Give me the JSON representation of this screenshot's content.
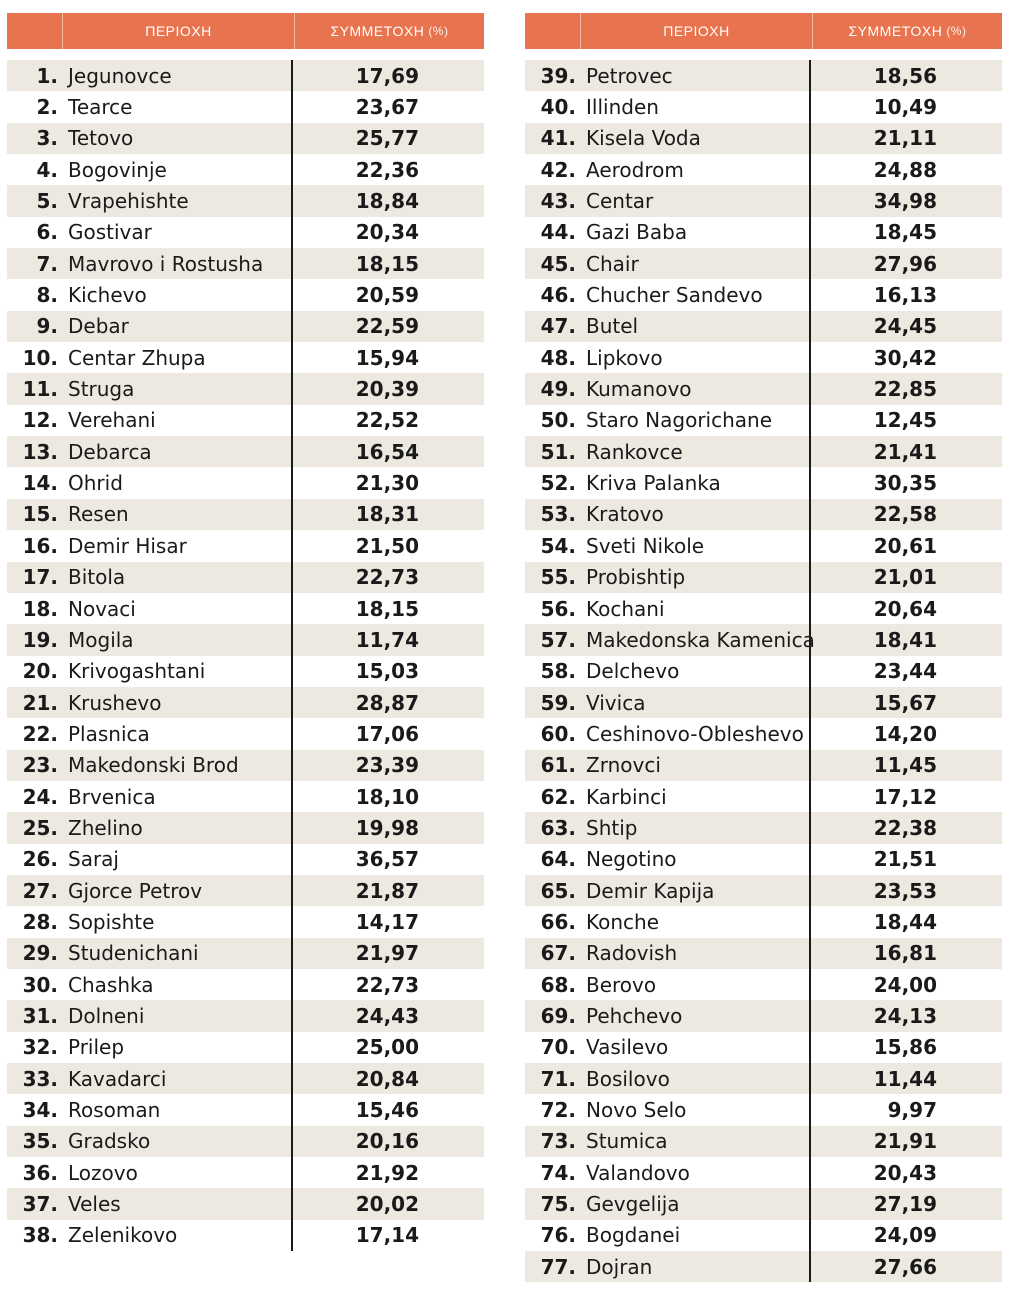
{
  "header": {
    "region": "ΠΕΡΙΟΧΗ",
    "participation": "ΣΥΜΜΕΤΟΧΗ",
    "participation_unit": "(%)"
  },
  "left_rows": [
    {
      "num": "1.",
      "name": "Jegunovce",
      "value": "17,69"
    },
    {
      "num": "2.",
      "name": "Tearce",
      "value": "23,67"
    },
    {
      "num": "3.",
      "name": "Tetovo",
      "value": "25,77"
    },
    {
      "num": "4.",
      "name": "Bogovinje",
      "value": "22,36"
    },
    {
      "num": "5.",
      "name": "Vrapehishte",
      "value": "18,84"
    },
    {
      "num": "6.",
      "name": "Gostivar",
      "value": "20,34"
    },
    {
      "num": "7.",
      "name": "Mavrovo i Rostusha",
      "value": "18,15"
    },
    {
      "num": "8.",
      "name": "Kichevo",
      "value": "20,59"
    },
    {
      "num": "9.",
      "name": "Debar",
      "value": "22,59"
    },
    {
      "num": "10.",
      "name": "Centar Zhupa",
      "value": "15,94"
    },
    {
      "num": "11.",
      "name": "Struga",
      "value": "20,39"
    },
    {
      "num": "12.",
      "name": "Verehani",
      "value": "22,52"
    },
    {
      "num": "13.",
      "name": "Debarca",
      "value": "16,54"
    },
    {
      "num": "14.",
      "name": "Ohrid",
      "value": "21,30"
    },
    {
      "num": "15.",
      "name": "Resen",
      "value": "18,31"
    },
    {
      "num": "16.",
      "name": "Demir Hisar",
      "value": "21,50"
    },
    {
      "num": "17.",
      "name": "Bitola",
      "value": "22,73"
    },
    {
      "num": "18.",
      "name": "Novaci",
      "value": "18,15"
    },
    {
      "num": "19.",
      "name": "Mogila",
      "value": "11,74"
    },
    {
      "num": "20.",
      "name": "Krivogashtani",
      "value": "15,03"
    },
    {
      "num": "21.",
      "name": "Krushevo",
      "value": "28,87"
    },
    {
      "num": "22.",
      "name": "Plasnica",
      "value": "17,06"
    },
    {
      "num": "23.",
      "name": "Makedonski Brod",
      "value": "23,39"
    },
    {
      "num": "24.",
      "name": "Brvenica",
      "value": "18,10"
    },
    {
      "num": "25.",
      "name": "Zhelino",
      "value": "19,98"
    },
    {
      "num": "26.",
      "name": "Saraj",
      "value": "36,57"
    },
    {
      "num": "27.",
      "name": "Gjorce Petrov",
      "value": "21,87"
    },
    {
      "num": "28.",
      "name": "Sopishte",
      "value": "14,17"
    },
    {
      "num": "29.",
      "name": "Studenichani",
      "value": "21,97"
    },
    {
      "num": "30.",
      "name": "Chashka",
      "value": "22,73"
    },
    {
      "num": "31.",
      "name": "Dolneni",
      "value": "24,43"
    },
    {
      "num": "32.",
      "name": "Prilep",
      "value": "25,00"
    },
    {
      "num": "33.",
      "name": "Kavadarci",
      "value": "20,84"
    },
    {
      "num": "34.",
      "name": "Rosoman",
      "value": "15,46"
    },
    {
      "num": "35.",
      "name": "Gradsko",
      "value": "20,16"
    },
    {
      "num": "36.",
      "name": "Lozovo",
      "value": "21,92"
    },
    {
      "num": "37.",
      "name": "Veles",
      "value": "20,02"
    },
    {
      "num": "38.",
      "name": "Zelenikovo",
      "value": "17,14"
    }
  ],
  "right_rows": [
    {
      "num": "39.",
      "name": "Petrovec",
      "value": "18,56"
    },
    {
      "num": "40.",
      "name": "Illinden",
      "value": "10,49"
    },
    {
      "num": "41.",
      "name": "Kisela Voda",
      "value": "21,11"
    },
    {
      "num": "42.",
      "name": "Aerodrom",
      "value": "24,88"
    },
    {
      "num": "43.",
      "name": "Centar",
      "value": "34,98"
    },
    {
      "num": "44.",
      "name": "Gazi Baba",
      "value": "18,45"
    },
    {
      "num": "45.",
      "name": "Chair",
      "value": "27,96"
    },
    {
      "num": "46.",
      "name": "Chucher Sandevo",
      "value": "16,13"
    },
    {
      "num": "47.",
      "name": "Butel",
      "value": "24,45"
    },
    {
      "num": "48.",
      "name": "Lipkovo",
      "value": "30,42"
    },
    {
      "num": "49.",
      "name": "Kumanovo",
      "value": "22,85"
    },
    {
      "num": "50.",
      "name": "Staro Nagorichane",
      "value": "12,45"
    },
    {
      "num": "51.",
      "name": "Rankovce",
      "value": "21,41"
    },
    {
      "num": "52.",
      "name": "Kriva Palanka",
      "value": "30,35"
    },
    {
      "num": "53.",
      "name": "Kratovo",
      "value": "22,58"
    },
    {
      "num": "54.",
      "name": "Sveti Nikole",
      "value": "20,61"
    },
    {
      "num": "55.",
      "name": "Probishtip",
      "value": "21,01"
    },
    {
      "num": "56.",
      "name": "Kochani",
      "value": "20,64"
    },
    {
      "num": "57.",
      "name": "Makedonska Kamenica",
      "value": "18,41"
    },
    {
      "num": "58.",
      "name": "Delchevo",
      "value": "23,44"
    },
    {
      "num": "59.",
      "name": "Vivica",
      "value": "15,67"
    },
    {
      "num": "60.",
      "name": "Ceshinovo-Obleshevo",
      "value": "14,20"
    },
    {
      "num": "61.",
      "name": "Zrnovci",
      "value": "11,45"
    },
    {
      "num": "62.",
      "name": "Karbinci",
      "value": "17,12"
    },
    {
      "num": "63.",
      "name": "Shtip",
      "value": "22,38"
    },
    {
      "num": "64.",
      "name": "Negotino",
      "value": "21,51"
    },
    {
      "num": "65.",
      "name": "Demir Kapija",
      "value": "23,53"
    },
    {
      "num": "66.",
      "name": "Konche",
      "value": "18,44"
    },
    {
      "num": "67.",
      "name": "Radovish",
      "value": "16,81"
    },
    {
      "num": "68.",
      "name": "Berovo",
      "value": "24,00"
    },
    {
      "num": "69.",
      "name": "Pehchevo",
      "value": "24,13"
    },
    {
      "num": "70.",
      "name": "Vasilevo",
      "value": "15,86"
    },
    {
      "num": "71.",
      "name": "Bosilovo",
      "value": "11,44"
    },
    {
      "num": "72.",
      "name": "Novo Selo",
      "value": "9,97"
    },
    {
      "num": "73.",
      "name": "Stumica",
      "value": "21,91"
    },
    {
      "num": "74.",
      "name": "Valandovo",
      "value": "20,43"
    },
    {
      "num": "75.",
      "name": "Gevgelija",
      "value": "27,19"
    },
    {
      "num": "76.",
      "name": "Bogdanei",
      "value": "24,09"
    },
    {
      "num": "77.",
      "name": "Dojran",
      "value": "27,66"
    }
  ]
}
